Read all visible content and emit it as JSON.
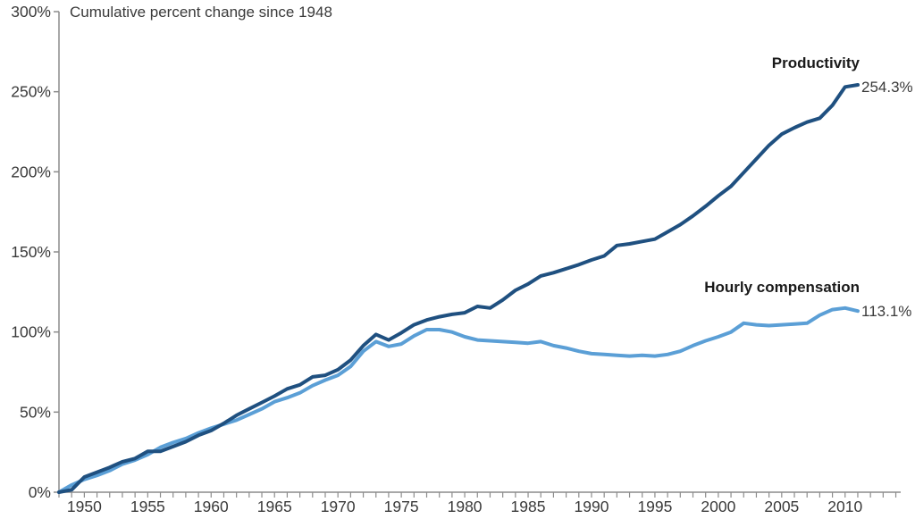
{
  "chart_data": {
    "type": "line",
    "title": "Cumulative percent change since 1948",
    "xlabel": "",
    "ylabel": "Cumulative percent change since 1948",
    "ylim": [
      0,
      300
    ],
    "xlim": [
      1948,
      2014
    ],
    "grid": false,
    "legend_position": "end-of-line labels",
    "y_tick_labels": [
      "0%",
      "50%",
      "100%",
      "150%",
      "200%",
      "250%",
      "300%"
    ],
    "y_tick_values": [
      0,
      50,
      100,
      150,
      200,
      250,
      300
    ],
    "x_tick_label_years": [
      1950,
      1955,
      1960,
      1965,
      1970,
      1975,
      1980,
      1985,
      1990,
      1995,
      2000,
      2005,
      2010
    ],
    "minor_x_ticks_every_year": true,
    "x_start_year": 1948,
    "x_end_year": 2011,
    "years": [
      1948,
      1949,
      1950,
      1951,
      1952,
      1953,
      1954,
      1955,
      1956,
      1957,
      1958,
      1959,
      1960,
      1961,
      1962,
      1963,
      1964,
      1965,
      1966,
      1967,
      1968,
      1969,
      1970,
      1971,
      1972,
      1973,
      1974,
      1975,
      1976,
      1977,
      1978,
      1979,
      1980,
      1981,
      1982,
      1983,
      1984,
      1985,
      1986,
      1987,
      1988,
      1989,
      1990,
      1991,
      1992,
      1993,
      1994,
      1995,
      1996,
      1997,
      1998,
      1999,
      2000,
      2001,
      2002,
      2003,
      2004,
      2005,
      2006,
      2007,
      2008,
      2009,
      2010,
      2011
    ],
    "series": [
      {
        "name": "Productivity",
        "end_label": "254.3%",
        "end_value": 254.3,
        "color": "#1F5080",
        "values": [
          0,
          1.5,
          9.5,
          12.5,
          15.5,
          19,
          21,
          25.5,
          25.5,
          28.5,
          31.5,
          35.5,
          38.5,
          43,
          48,
          52,
          56,
          60,
          64.5,
          67,
          72,
          73,
          76.5,
          82.5,
          91.5,
          98.5,
          95,
          99.5,
          104.5,
          107.5,
          109.5,
          111,
          112,
          116,
          115,
          120,
          126,
          130,
          135,
          137,
          139.5,
          142,
          145,
          147.5,
          154,
          155,
          156.5,
          158,
          162.5,
          167,
          172.5,
          178.5,
          185,
          191,
          199.5,
          208,
          216.5,
          223.5,
          227.5,
          231,
          233.5,
          241.5,
          253,
          254.3
        ]
      },
      {
        "name": "Hourly compensation",
        "end_label": "113.1%",
        "end_value": 113.1,
        "color": "#5B9FD6",
        "values": [
          0,
          4.5,
          8,
          10.5,
          13.5,
          17.5,
          20,
          23.5,
          28,
          31,
          33.5,
          37,
          40,
          42.5,
          45,
          48.5,
          52,
          56.5,
          59,
          62,
          66.5,
          70,
          73,
          78.5,
          88,
          94,
          91,
          92.5,
          97.5,
          101.5,
          101.5,
          100,
          97,
          95,
          94.5,
          94,
          93.5,
          93,
          94,
          91.5,
          90,
          88,
          86.5,
          86,
          85.5,
          85,
          85.5,
          85,
          86,
          88,
          91.5,
          94.5,
          97,
          100,
          105.5,
          104.5,
          104,
          104.5,
          105,
          105.5,
          110.5,
          114,
          115,
          113.1
        ]
      }
    ],
    "axis_color": "#8C8C8C",
    "text_color": "#3a3a3a"
  }
}
